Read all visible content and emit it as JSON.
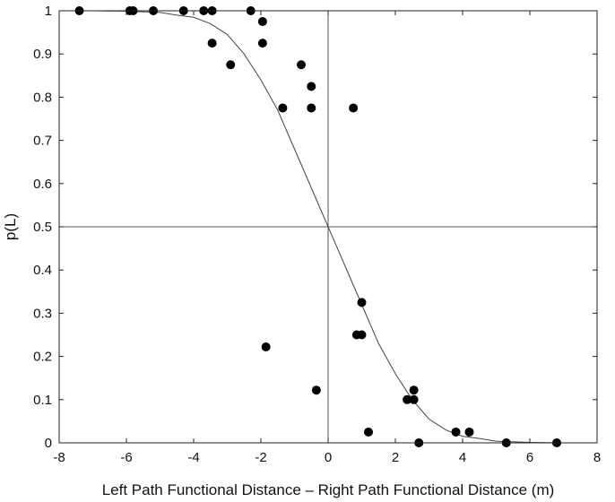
{
  "chart_data": {
    "type": "scatter",
    "xlabel": "Left Path Functional Distance – Right Path Functional Distance (m)",
    "ylabel": "p(L)",
    "xlim": [
      -8,
      8
    ],
    "ylim": [
      0,
      1
    ],
    "x_ticks": [
      -8,
      -6,
      -4,
      -2,
      0,
      2,
      4,
      6,
      8
    ],
    "y_ticks": [
      0,
      0.1,
      0.2,
      0.3,
      0.4,
      0.5,
      0.6,
      0.7,
      0.8,
      0.9,
      1
    ],
    "x_tick_labels": [
      "-8",
      "-6",
      "-4",
      "-2",
      "0",
      "2",
      "4",
      "6",
      "8"
    ],
    "y_tick_labels": [
      "0",
      "0.1",
      "0.2",
      "0.3",
      "0.4",
      "0.5",
      "0.6",
      "0.7",
      "0.8",
      "0.9",
      "1"
    ],
    "reference_lines": {
      "x": 0,
      "y": 0.5
    },
    "grid": false,
    "series": [
      {
        "type": "scatter",
        "color": "#000000",
        "points": [
          {
            "x": -7.4,
            "y": 1.0
          },
          {
            "x": -5.9,
            "y": 1.0
          },
          {
            "x": -5.8,
            "y": 1.0
          },
          {
            "x": -5.2,
            "y": 1.0
          },
          {
            "x": -4.3,
            "y": 1.0
          },
          {
            "x": -3.7,
            "y": 1.0
          },
          {
            "x": -3.45,
            "y": 1.0
          },
          {
            "x": -2.3,
            "y": 1.0
          },
          {
            "x": -3.45,
            "y": 0.925
          },
          {
            "x": -2.9,
            "y": 0.875
          },
          {
            "x": -1.95,
            "y": 0.975
          },
          {
            "x": -1.95,
            "y": 0.925
          },
          {
            "x": -1.35,
            "y": 0.775
          },
          {
            "x": -1.85,
            "y": 0.222
          },
          {
            "x": -0.8,
            "y": 0.875
          },
          {
            "x": -0.5,
            "y": 0.825
          },
          {
            "x": -0.5,
            "y": 0.775
          },
          {
            "x": -0.35,
            "y": 0.122
          },
          {
            "x": 0.75,
            "y": 0.775
          },
          {
            "x": 0.85,
            "y": 0.25
          },
          {
            "x": 1.0,
            "y": 0.25
          },
          {
            "x": 1.0,
            "y": 0.325
          },
          {
            "x": 1.2,
            "y": 0.025
          },
          {
            "x": 2.35,
            "y": 0.1
          },
          {
            "x": 2.55,
            "y": 0.1
          },
          {
            "x": 2.55,
            "y": 0.122
          },
          {
            "x": 2.7,
            "y": 0.0
          },
          {
            "x": 3.8,
            "y": 0.025
          },
          {
            "x": 4.2,
            "y": 0.025
          },
          {
            "x": 5.3,
            "y": 0.0
          },
          {
            "x": 6.8,
            "y": 0.0
          }
        ]
      },
      {
        "type": "line",
        "color": "#000000",
        "points": [
          {
            "x": -8,
            "y": 1.0
          },
          {
            "x": -7,
            "y": 1.0
          },
          {
            "x": -6,
            "y": 0.999
          },
          {
            "x": -5,
            "y": 0.996
          },
          {
            "x": -4.5,
            "y": 0.99
          },
          {
            "x": -4,
            "y": 0.985
          },
          {
            "x": -3.5,
            "y": 0.97
          },
          {
            "x": -3,
            "y": 0.945
          },
          {
            "x": -2.5,
            "y": 0.9
          },
          {
            "x": -2,
            "y": 0.84
          },
          {
            "x": -1.5,
            "y": 0.77
          },
          {
            "x": -1,
            "y": 0.68
          },
          {
            "x": -0.5,
            "y": 0.59
          },
          {
            "x": 0,
            "y": 0.5
          },
          {
            "x": 0.5,
            "y": 0.41
          },
          {
            "x": 1,
            "y": 0.32
          },
          {
            "x": 1.5,
            "y": 0.23
          },
          {
            "x": 2,
            "y": 0.16
          },
          {
            "x": 2.5,
            "y": 0.1
          },
          {
            "x": 3,
            "y": 0.055
          },
          {
            "x": 3.5,
            "y": 0.03
          },
          {
            "x": 4,
            "y": 0.015
          },
          {
            "x": 4.5,
            "y": 0.01
          },
          {
            "x": 5,
            "y": 0.004
          },
          {
            "x": 6,
            "y": 0.001
          },
          {
            "x": 7,
            "y": 0.0
          },
          {
            "x": 8,
            "y": 0.0
          }
        ]
      }
    ]
  }
}
